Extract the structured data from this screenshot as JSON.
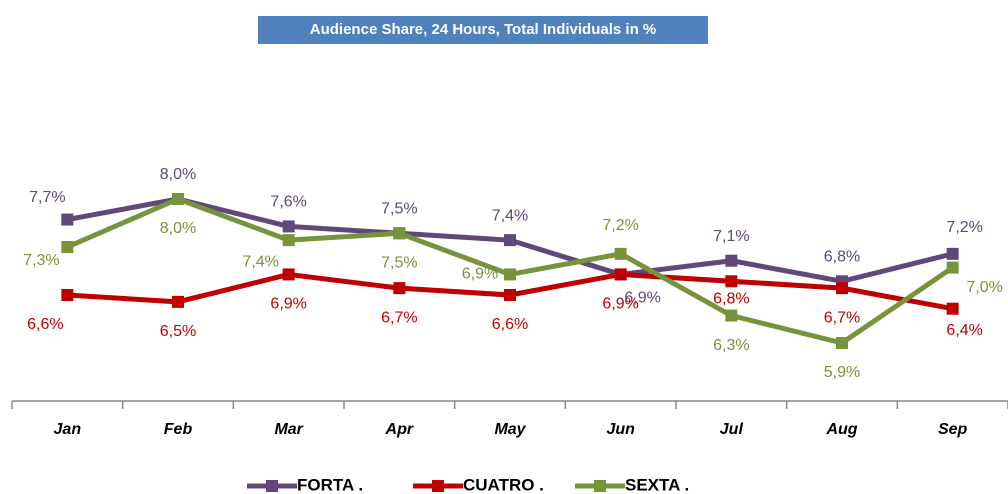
{
  "chart_data": {
    "type": "line",
    "title": "Audience Share, 24 Hours, Total Individuals  in %",
    "categories": [
      "Jan",
      "Feb",
      "Mar",
      "Apr",
      "May",
      "Jun",
      "Jul",
      "Aug",
      "Sep"
    ],
    "series": [
      {
        "name": "FORTA .",
        "color": "#60497a",
        "values": [
          7.7,
          8.0,
          7.6,
          7.5,
          7.4,
          6.9,
          7.1,
          6.8,
          7.2
        ],
        "value_labels": [
          "7,7%",
          "8,0%",
          "7,6%",
          "7,5%",
          "7,4%",
          "6,9%",
          "7,1%",
          "6,8%",
          "7,2%"
        ]
      },
      {
        "name": "CUATRO .",
        "color": "#c00000",
        "values": [
          6.6,
          6.5,
          6.9,
          6.7,
          6.6,
          6.9,
          6.8,
          6.7,
          6.4
        ],
        "value_labels": [
          "6,6%",
          "6,5%",
          "6,9%",
          "6,7%",
          "6,6%",
          "6,9%",
          "6,8%",
          "6,7%",
          "6,4%"
        ]
      },
      {
        "name": "SEXTA .",
        "color": "#77933c",
        "values": [
          7.3,
          8.0,
          7.4,
          7.5,
          6.9,
          7.2,
          6.3,
          5.9,
          7.0
        ],
        "value_labels": [
          "7,3%",
          "8,0%",
          "7,4%",
          "7,5%",
          "6,9%",
          "7,2%",
          "6,3%",
          "5,9%",
          "7,0%"
        ]
      }
    ],
    "legend": "bottom"
  }
}
